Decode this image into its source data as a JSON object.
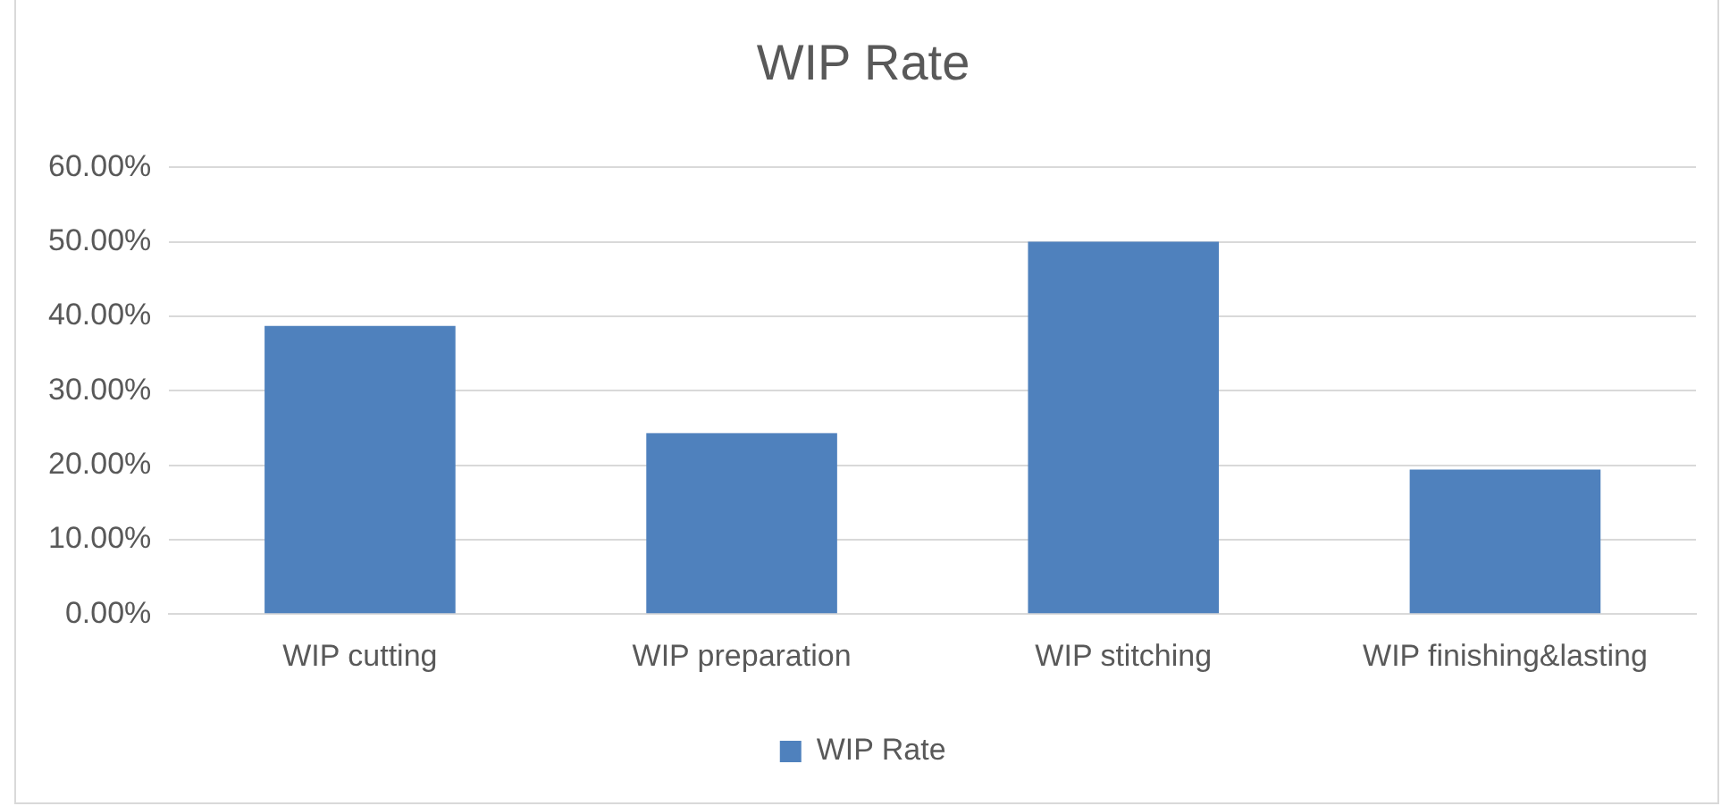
{
  "chart_data": {
    "type": "bar",
    "title": "WIP Rate",
    "categories": [
      "WIP cutting",
      "WIP preparation",
      "WIP stitching",
      "WIP finishing&lasting"
    ],
    "series": [
      {
        "name": "WIP Rate",
        "color": "#4f81bd",
        "values": [
          38.7,
          24.3,
          50,
          19.4
        ]
      }
    ],
    "ylim": [
      0,
      60
    ],
    "yticks": [
      {
        "value": 0,
        "label": "0.00%"
      },
      {
        "value": 10,
        "label": "10.00%"
      },
      {
        "value": 20,
        "label": "20.00%"
      },
      {
        "value": 30,
        "label": "30.00%"
      },
      {
        "value": 40,
        "label": "40.00%"
      },
      {
        "value": 50,
        "label": "50.00%"
      },
      {
        "value": 60,
        "label": "60.00%"
      }
    ],
    "grid": "y",
    "legend": "bottom"
  }
}
